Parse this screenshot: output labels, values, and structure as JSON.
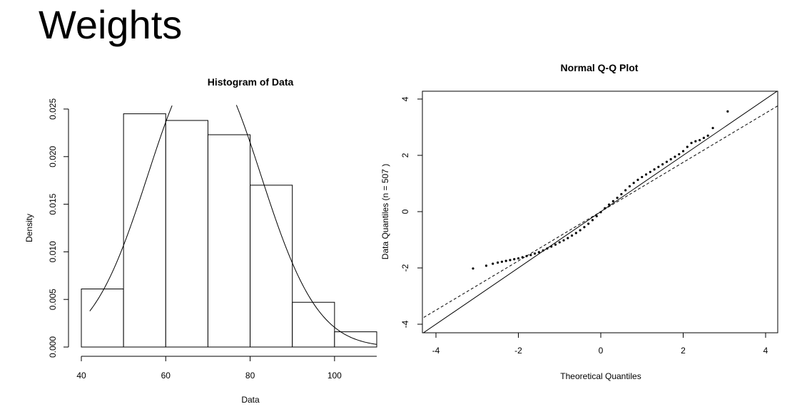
{
  "slide": {
    "title": "Weights"
  },
  "chart_data": [
    {
      "type": "bar",
      "title": "Histogram of  Data",
      "xlabel": "Data",
      "ylabel": "Density",
      "bins": [
        {
          "from": 40,
          "to": 50,
          "density": 0.0061
        },
        {
          "from": 50,
          "to": 60,
          "density": 0.0245
        },
        {
          "from": 60,
          "to": 70,
          "density": 0.0238
        },
        {
          "from": 70,
          "to": 80,
          "density": 0.0223
        },
        {
          "from": 80,
          "to": 90,
          "density": 0.017
        },
        {
          "from": 90,
          "to": 100,
          "density": 0.0047
        },
        {
          "from": 100,
          "to": 110,
          "density": 0.0016
        }
      ],
      "normal_curve": {
        "mean": 69.15,
        "sd": 13.35
      },
      "xlim": [
        40,
        110
      ],
      "ylim": [
        0,
        0.025
      ],
      "xticks": [
        "40",
        "60",
        "80",
        "100"
      ],
      "yticks": [
        "0.000",
        "0.005",
        "0.010",
        "0.015",
        "0.020",
        "0.025"
      ]
    },
    {
      "type": "scatter",
      "title": "Normal Q-Q Plot",
      "xlabel": "Theoretical Quantiles",
      "ylabel": "Data Quantiles (n = 507 )",
      "n": 507,
      "xlim": [
        -4,
        4
      ],
      "ylim": [
        -4,
        4
      ],
      "xticks": [
        "-4",
        "-2",
        "0",
        "2",
        "4"
      ],
      "yticks": [
        "-4",
        "-2",
        "0",
        "2",
        "4"
      ],
      "points": [
        [
          -3.1,
          -2.02
        ],
        [
          -2.78,
          -1.92
        ],
        [
          -2.62,
          -1.85
        ],
        [
          -2.5,
          -1.81
        ],
        [
          -2.4,
          -1.78
        ],
        [
          -2.3,
          -1.75
        ],
        [
          -2.2,
          -1.72
        ],
        [
          -2.1,
          -1.69
        ],
        [
          -2.0,
          -1.66
        ],
        [
          -1.9,
          -1.62
        ],
        [
          -1.8,
          -1.58
        ],
        [
          -1.7,
          -1.54
        ],
        [
          -1.6,
          -1.49
        ],
        [
          -1.5,
          -1.44
        ],
        [
          -1.4,
          -1.38
        ],
        [
          -1.3,
          -1.31
        ],
        [
          -1.2,
          -1.24
        ],
        [
          -1.1,
          -1.17
        ],
        [
          -1.0,
          -1.09
        ],
        [
          -0.9,
          -1.02
        ],
        [
          -0.8,
          -0.94
        ],
        [
          -0.7,
          -0.85
        ],
        [
          -0.6,
          -0.76
        ],
        [
          -0.5,
          -0.66
        ],
        [
          -0.4,
          -0.55
        ],
        [
          -0.3,
          -0.43
        ],
        [
          -0.2,
          -0.3
        ],
        [
          -0.1,
          -0.16
        ],
        [
          0.0,
          -0.02
        ],
        [
          0.1,
          0.12
        ],
        [
          0.2,
          0.25
        ],
        [
          0.3,
          0.37
        ],
        [
          0.4,
          0.49
        ],
        [
          0.5,
          0.62
        ],
        [
          0.6,
          0.76
        ],
        [
          0.7,
          0.9
        ],
        [
          0.8,
          1.02
        ],
        [
          0.9,
          1.13
        ],
        [
          1.0,
          1.23
        ],
        [
          1.1,
          1.32
        ],
        [
          1.2,
          1.41
        ],
        [
          1.3,
          1.5
        ],
        [
          1.4,
          1.59
        ],
        [
          1.5,
          1.68
        ],
        [
          1.6,
          1.77
        ],
        [
          1.7,
          1.86
        ],
        [
          1.8,
          1.95
        ],
        [
          1.9,
          2.04
        ],
        [
          2.0,
          2.15
        ],
        [
          2.1,
          2.3
        ],
        [
          2.2,
          2.44
        ],
        [
          2.3,
          2.5
        ],
        [
          2.4,
          2.54
        ],
        [
          2.5,
          2.62
        ],
        [
          2.6,
          2.7
        ],
        [
          2.72,
          2.97
        ],
        [
          3.08,
          3.56
        ]
      ],
      "reference_lines": [
        {
          "style": "solid",
          "intercept": 0.0,
          "slope": 1.0
        },
        {
          "style": "dashed",
          "intercept": 0.0,
          "slope": 0.875
        }
      ]
    }
  ]
}
